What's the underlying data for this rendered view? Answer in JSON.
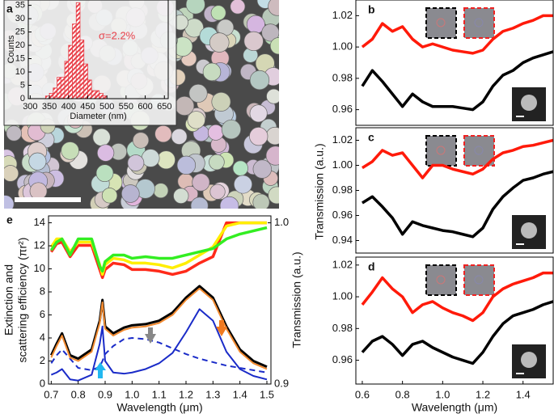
{
  "chart_data": [
    {
      "type": "histogram",
      "panel_label": "a",
      "xlabel": "Diameter (nm)",
      "ylabel": "Counts",
      "annotation": "σ=2.2%",
      "color": "#e8414a",
      "bins": [
        340,
        350,
        360,
        370,
        380,
        390,
        400,
        410,
        420,
        430,
        440,
        450,
        460,
        470,
        480,
        490,
        500
      ],
      "values": [
        1,
        2,
        4,
        8,
        8,
        14,
        20,
        28,
        36,
        22,
        13,
        7,
        3,
        3,
        2,
        1
      ],
      "xlim": [
        295,
        660
      ],
      "ylim": [
        0,
        37
      ],
      "xticks": [
        300,
        350,
        400,
        450,
        500,
        550,
        600,
        650
      ],
      "yticks": [
        0,
        5,
        10,
        15,
        20,
        25,
        30,
        35
      ]
    },
    {
      "type": "line",
      "panel_label": "e",
      "xlabel": "Wavelength (μm)",
      "ylabel": [
        "Extinction and",
        "scattering efficiency (πr²)"
      ],
      "y2label": "Transmission (a.u.)",
      "x": [
        0.7,
        0.72,
        0.74,
        0.77,
        0.8,
        0.85,
        0.88,
        0.89,
        0.9,
        0.93,
        0.97,
        1.0,
        1.05,
        1.1,
        1.15,
        1.2,
        1.25,
        1.3,
        1.35,
        1.4,
        1.45,
        1.5
      ],
      "series": [
        {
          "color": "#ff2a1a",
          "axis": "y2",
          "values": [
            0.982,
            0.987,
            0.988,
            0.979,
            0.986,
            0.986,
            0.971,
            0.966,
            0.971,
            0.975,
            0.974,
            0.971,
            0.971,
            0.97,
            0.968,
            0.97,
            0.975,
            0.979,
            1.0,
            1.0,
            1.0,
            1.0
          ]
        },
        {
          "color": "#ffee00",
          "axis": "y2",
          "values": [
            0.985,
            0.99,
            0.99,
            0.982,
            0.988,
            0.988,
            0.974,
            0.968,
            0.974,
            0.978,
            0.977,
            0.975,
            0.975,
            0.974,
            0.972,
            0.975,
            0.98,
            0.985,
            0.998,
            1.0,
            1.0,
            1.0
          ]
        },
        {
          "color": "#33ee22",
          "axis": "y2",
          "values": [
            0.983,
            0.988,
            0.99,
            0.98,
            0.99,
            0.99,
            0.973,
            0.97,
            0.976,
            0.98,
            0.98,
            0.978,
            0.979,
            0.978,
            0.978,
            0.98,
            0.982,
            0.984,
            0.99,
            0.993,
            0.995,
            0.997
          ]
        },
        {
          "color": "#1a2bc8",
          "dash": true,
          "values": [
            1.8,
            2.5,
            3.0,
            2.2,
            1.4,
            1.2,
            1.5,
            2.0,
            2.6,
            3.3,
            3.9,
            4.0,
            3.9,
            3.6,
            3.1,
            2.6,
            2.2,
            1.9,
            1.6,
            1.4,
            1.2,
            1.0
          ]
        },
        {
          "color": "#1a2bc8",
          "values": [
            0.8,
            1.0,
            1.3,
            0.4,
            0.3,
            0.8,
            3.5,
            5.0,
            2.0,
            1.0,
            0.9,
            1.0,
            1.3,
            1.8,
            2.7,
            4.5,
            6.5,
            5.5,
            2.8,
            1.3,
            0.7,
            0.4
          ]
        },
        {
          "color": "#000000",
          "values": [
            2.5,
            3.5,
            4.4,
            2.5,
            2.2,
            3.0,
            5.5,
            7.3,
            5.0,
            4.4,
            4.9,
            5.1,
            5.2,
            5.5,
            6.2,
            7.5,
            8.5,
            7.5,
            5.0,
            3.0,
            2.0,
            1.5
          ]
        },
        {
          "color": "#f28a30",
          "values": [
            2.3,
            3.3,
            4.2,
            2.3,
            2.0,
            2.8,
            5.3,
            7.1,
            4.8,
            4.2,
            4.7,
            4.9,
            5.0,
            5.3,
            6.0,
            7.3,
            8.3,
            7.3,
            4.8,
            2.8,
            1.8,
            1.3
          ]
        }
      ],
      "xlim": [
        0.69,
        1.515
      ],
      "ylim": [
        0,
        14.6
      ],
      "y2lim": [
        0.9,
        1.0043
      ],
      "xticks": [
        0.7,
        0.8,
        0.9,
        {
          "value": 1,
          "label": "1.0"
        },
        1.1,
        1.2,
        1.3,
        1.4,
        1.5
      ],
      "yticks": [
        0,
        2,
        4,
        6,
        8,
        10,
        12,
        14
      ],
      "y2ticks": [
        0.9,
        {
          "value": 1,
          "label": "1.0"
        }
      ]
    },
    {
      "type": "line",
      "panel_label": "b",
      "x": [
        0.6,
        0.65,
        0.7,
        0.75,
        0.8,
        0.85,
        0.9,
        0.95,
        1.0,
        1.05,
        1.1,
        1.15,
        1.2,
        1.25,
        1.3,
        1.35,
        1.4,
        1.45,
        1.5,
        1.55
      ],
      "series": [
        {
          "color": "#ff1a0a",
          "values": [
            1.0,
            1.005,
            1.015,
            1.01,
            1.013,
            1.005,
            1.0,
            1.002,
            1.0,
            0.998,
            0.997,
            0.996,
            0.998,
            1.005,
            1.01,
            1.012,
            1.015,
            1.017,
            1.02,
            1.02
          ]
        },
        {
          "color": "#000000",
          "values": [
            0.975,
            0.985,
            0.978,
            0.97,
            0.962,
            0.97,
            0.965,
            0.962,
            0.962,
            0.962,
            0.961,
            0.96,
            0.965,
            0.975,
            0.982,
            0.985,
            0.99,
            0.993,
            0.995,
            0.997
          ]
        }
      ],
      "xlim": [
        0.568,
        1.55
      ],
      "ylim": [
        0.95,
        1.03
      ],
      "yticks": [
        0.96,
        0.98,
        {
          "value": 1,
          "label": "1.00"
        },
        1.02
      ]
    },
    {
      "type": "line",
      "panel_label": "c",
      "ylabel": "Transmission (a.u.)",
      "x": [
        0.6,
        0.65,
        0.7,
        0.75,
        0.8,
        0.85,
        0.9,
        0.95,
        1.0,
        1.05,
        1.1,
        1.15,
        1.2,
        1.25,
        1.3,
        1.35,
        1.4,
        1.45,
        1.5,
        1.55
      ],
      "series": [
        {
          "color": "#ff1a0a",
          "values": [
            0.998,
            1.003,
            1.012,
            1.008,
            1.01,
            1.0,
            0.99,
            1.0,
            1.0,
            0.997,
            0.995,
            0.993,
            0.997,
            1.005,
            1.01,
            1.012,
            1.015,
            1.016,
            1.018,
            1.02
          ]
        },
        {
          "color": "#000000",
          "values": [
            0.97,
            0.975,
            0.967,
            0.958,
            0.945,
            0.955,
            0.952,
            0.95,
            0.948,
            0.947,
            0.945,
            0.943,
            0.95,
            0.965,
            0.975,
            0.982,
            0.988,
            0.99,
            0.993,
            0.995
          ]
        }
      ],
      "xlim": [
        0.568,
        1.55
      ],
      "ylim": [
        0.93,
        1.03
      ],
      "yticks": [
        0.94,
        0.96,
        0.98,
        {
          "value": 1,
          "label": "1.00"
        },
        1.02
      ]
    },
    {
      "type": "line",
      "panel_label": "d",
      "xlabel": "Wavelength (μm)",
      "x": [
        0.6,
        0.65,
        0.7,
        0.75,
        0.8,
        0.85,
        0.9,
        0.95,
        1.0,
        1.05,
        1.1,
        1.15,
        1.2,
        1.25,
        1.3,
        1.35,
        1.4,
        1.45,
        1.5,
        1.55
      ],
      "series": [
        {
          "color": "#ff1a0a",
          "values": [
            0.995,
            1.003,
            1.012,
            1.005,
            1.0,
            0.99,
            0.995,
            0.997,
            0.993,
            0.99,
            0.988,
            0.985,
            0.99,
            1.0,
            1.005,
            1.008,
            1.01,
            1.012,
            1.015,
            1.015
          ]
        },
        {
          "color": "#000000",
          "values": [
            0.965,
            0.972,
            0.975,
            0.97,
            0.963,
            0.97,
            0.972,
            0.968,
            0.965,
            0.962,
            0.96,
            0.958,
            0.965,
            0.975,
            0.983,
            0.988,
            0.99,
            0.992,
            0.995,
            0.997
          ]
        }
      ],
      "xlim": [
        0.568,
        1.55
      ],
      "ylim": [
        0.945,
        1.025
      ],
      "xticks": [
        0.6,
        0.8,
        {
          "value": 1,
          "label": "1.0"
        },
        1.2,
        1.4
      ],
      "yticks": [
        0.96,
        0.98,
        {
          "value": 1,
          "label": "1.00"
        },
        1.02
      ]
    }
  ]
}
